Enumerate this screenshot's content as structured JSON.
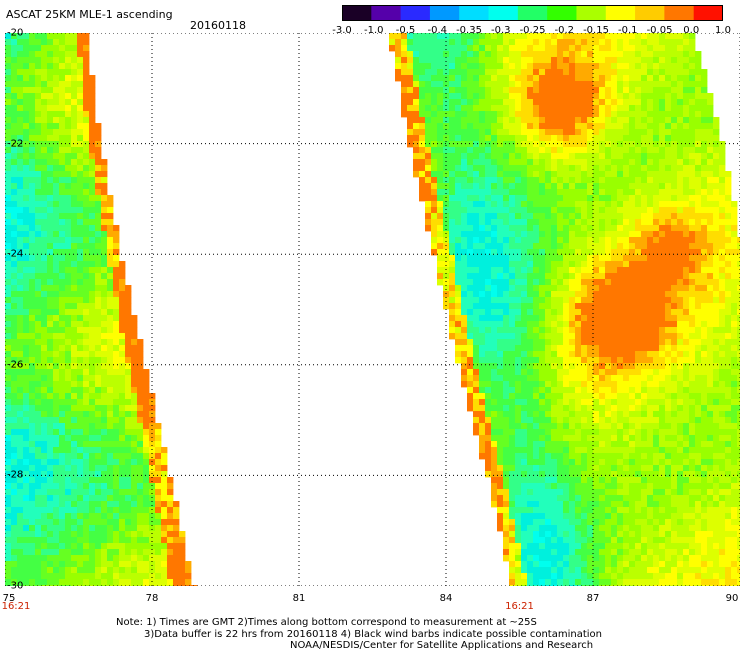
{
  "header": {
    "title": "ASCAT 25KM MLE-1 ascending",
    "date": "20160118"
  },
  "colorbar": {
    "labels": [
      "-3.0",
      "-1.0",
      "-0.5",
      "-0.4",
      "-0.35",
      "-0.3",
      "-0.25",
      "-0.2",
      "-0.15",
      "-0.1",
      "-0.05",
      "0.0",
      "1.0"
    ],
    "colors": [
      "#1a0026",
      "#5500aa",
      "#2a2aff",
      "#0099ff",
      "#00ddff",
      "#00ffee",
      "#22ff66",
      "#33ff00",
      "#aaff00",
      "#ffff00",
      "#ffcc00",
      "#ff7700",
      "#ff1100"
    ]
  },
  "map": {
    "lon_labels": [
      "75",
      "78",
      "81",
      "84",
      "87",
      "90"
    ],
    "lat_labels": [
      "-20",
      "-22",
      "-24",
      "-26",
      "-28",
      "-30"
    ],
    "lon_range": [
      75,
      90
    ],
    "lat_range": [
      -20,
      -30
    ],
    "grid": "dotted",
    "swaths": [
      {
        "edges_lon": [
          {
            "lat": -20,
            "west": 75.0,
            "east": 76.6
          },
          {
            "lat": -22,
            "west": 75.0,
            "east": 76.9
          },
          {
            "lat": -24,
            "west": 75.0,
            "east": 77.3
          },
          {
            "lat": -26,
            "west": 75.0,
            "east": 77.8
          },
          {
            "lat": -28,
            "west": 75.0,
            "east": 78.3
          },
          {
            "lat": -30,
            "west": 75.0,
            "east": 78.8
          }
        ]
      },
      {
        "edges_lon": [
          {
            "lat": -20,
            "west": 82.9,
            "east": 89.0
          },
          {
            "lat": -22,
            "west": 83.3,
            "east": 89.6
          },
          {
            "lat": -24,
            "west": 83.8,
            "east": 90.0
          },
          {
            "lat": -26,
            "west": 84.3,
            "east": 90.0
          },
          {
            "lat": -28,
            "west": 84.9,
            "east": 90.0
          },
          {
            "lat": -30,
            "west": 85.4,
            "east": 90.0
          }
        ]
      }
    ],
    "time_marks": [
      {
        "lon": 75,
        "text": "16:21"
      },
      {
        "lon": 85.5,
        "text": "16:21"
      }
    ]
  },
  "notes": {
    "line1": "Note: 1) Times are GMT 2)Times along bottom correspond to measurement at ~25S",
    "line2": "3)Data buffer is 22 hrs from 20160118 4) Black wind barbs indicate possible contamination",
    "line3": "NOAA/NESDIS/Center for Satellite Applications and Research"
  }
}
